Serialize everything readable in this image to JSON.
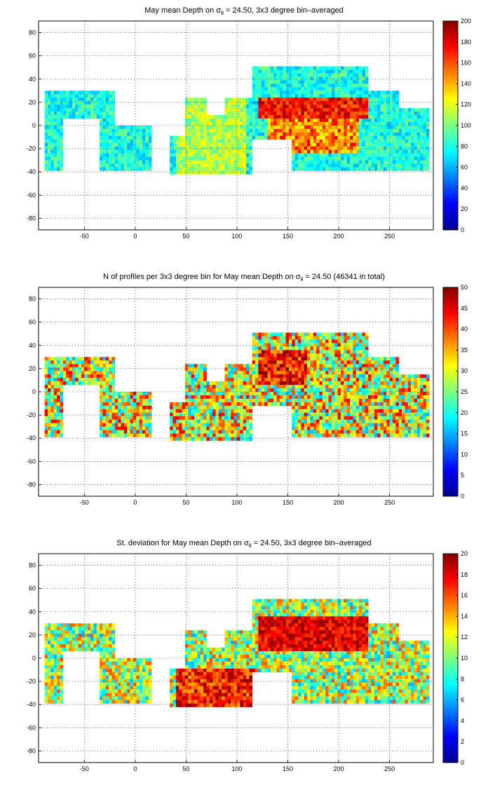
{
  "chart_data": [
    {
      "type": "heatmap",
      "title_prefix": "May mean Depth on ",
      "title_sigma": "σ",
      "title_sub": "θ",
      "title_suffix": " = 24.50, 3x3 degree bin–averaged",
      "xlim": [
        -95,
        293
      ],
      "ylim": [
        -90,
        90
      ],
      "xticks": [
        "-50",
        "0",
        "50",
        "100",
        "150",
        "200",
        "250"
      ],
      "yticks": [
        "80",
        "60",
        "40",
        "20",
        "0",
        "-20",
        "-40",
        "-60",
        "-80"
      ],
      "clim": [
        0,
        200
      ],
      "colorbar_ticks": [
        "200",
        "180",
        "160",
        "140",
        "120",
        "100",
        "80",
        "60",
        "40",
        "20",
        "0"
      ],
      "colormap": "jet",
      "grid": true
    },
    {
      "type": "heatmap",
      "title_prefix": "N of profiles per 3x3 degree bin for May mean Depth on ",
      "title_sigma": "σ",
      "title_sub": "θ",
      "title_suffix": " = 24.50 (46341 in total)",
      "xlim": [
        -95,
        293
      ],
      "ylim": [
        -90,
        90
      ],
      "xticks": [
        "-50",
        "0",
        "50",
        "100",
        "150",
        "200",
        "250"
      ],
      "yticks": [
        "80",
        "60",
        "40",
        "20",
        "0",
        "-20",
        "-40",
        "-60",
        "-80"
      ],
      "clim": [
        0,
        50
      ],
      "colorbar_ticks": [
        "50",
        "45",
        "40",
        "35",
        "30",
        "25",
        "20",
        "15",
        "10",
        "5",
        "0"
      ],
      "colormap": "jet",
      "grid": true
    },
    {
      "type": "heatmap",
      "title_prefix": "St. deviation for May mean Depth on ",
      "title_sigma": "σ",
      "title_sub": "θ",
      "title_suffix": " = 24.50, 3x3 degree bin–averaged",
      "xlim": [
        -95,
        293
      ],
      "ylim": [
        -90,
        90
      ],
      "xticks": [
        "-50",
        "0",
        "50",
        "100",
        "150",
        "200",
        "250"
      ],
      "yticks": [
        "80",
        "60",
        "40",
        "20",
        "0",
        "-20",
        "-40",
        "-60",
        "-80"
      ],
      "clim": [
        0,
        20
      ],
      "colorbar_ticks": [
        "20",
        "18",
        "16",
        "14",
        "12",
        "10",
        "8",
        "6",
        "4",
        "2",
        "0"
      ],
      "colormap": "jet",
      "grid": true
    }
  ]
}
